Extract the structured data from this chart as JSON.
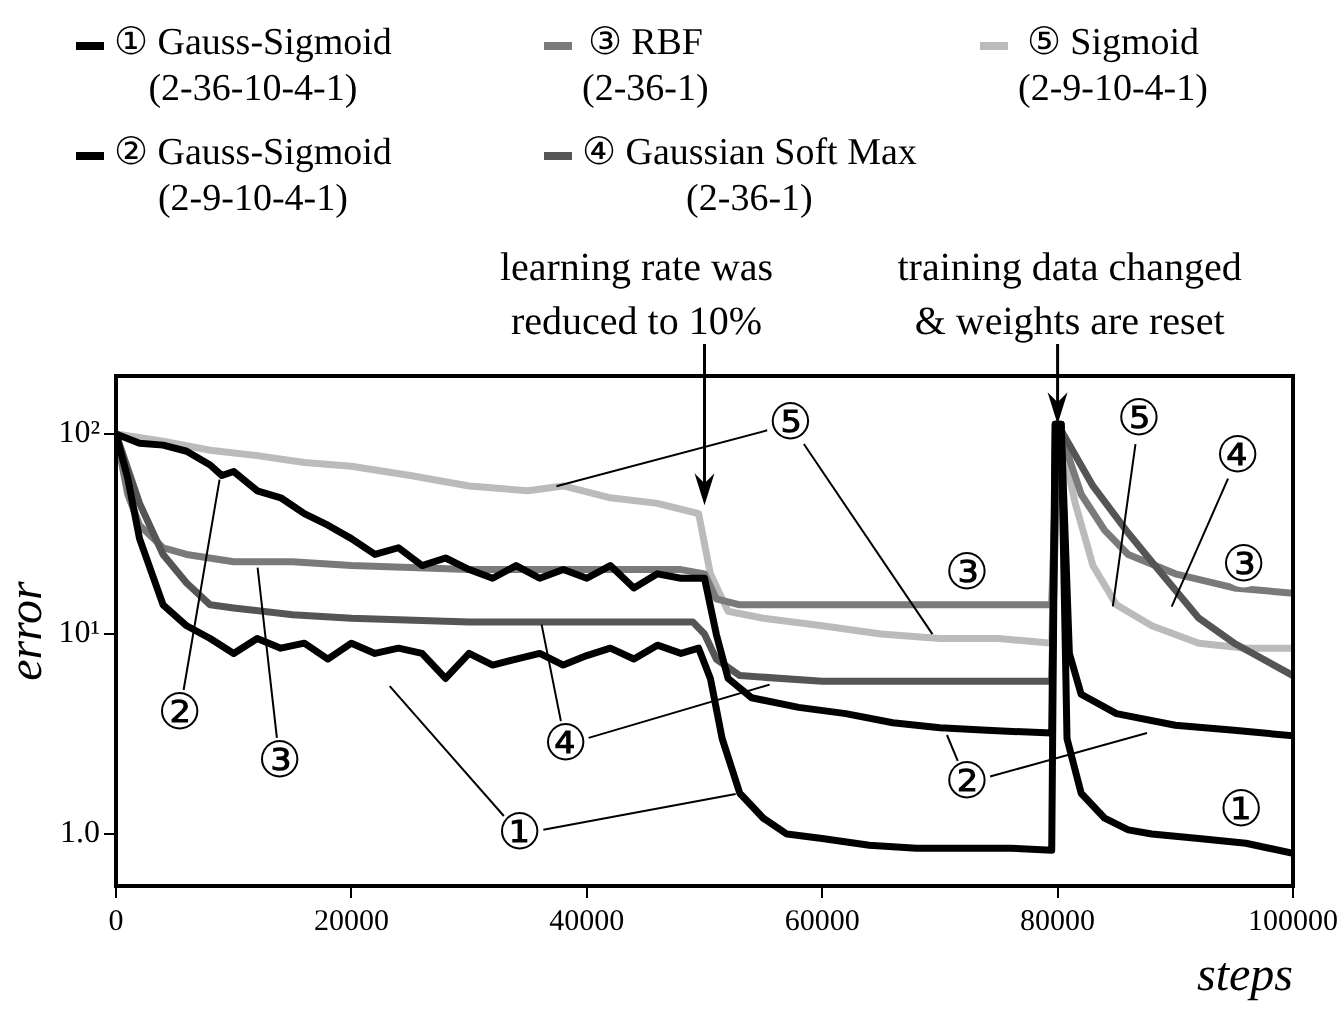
{
  "chart_data": {
    "type": "line",
    "xlabel": "steps",
    "ylabel": "error",
    "log": "y",
    "legend": "top",
    "xlim": [
      0,
      100000
    ],
    "xticks": [
      0,
      20000,
      40000,
      60000,
      80000,
      100000
    ],
    "ylim": [
      0.55,
      195
    ],
    "yticks": [
      {
        "value": 1,
        "label": "1.0"
      },
      {
        "value": 10,
        "label": "10¹"
      },
      {
        "value": 100,
        "label": "10²"
      }
    ],
    "series": [
      {
        "name": "① Gauss-Sigmoid\n(2-36-10-4-1)",
        "color": "#000000",
        "x": [
          0,
          1000,
          2000,
          4000,
          6000,
          8000,
          10000,
          12000,
          14000,
          16000,
          18000,
          20000,
          22000,
          24000,
          26000,
          28000,
          30000,
          32000,
          34000,
          36000,
          38000,
          40000,
          42000,
          44000,
          46000,
          48000,
          49500,
          50500,
          51500,
          53000,
          55000,
          57000,
          60000,
          64000,
          68000,
          72000,
          76000,
          79500,
          79800,
          80300,
          80800,
          82000,
          84000,
          86000,
          88000,
          92000,
          96000,
          100000
        ],
        "values": [
          100,
          60,
          30,
          14,
          11,
          9.5,
          8,
          9.5,
          8.5,
          9,
          7.5,
          9,
          8,
          8.5,
          8,
          6,
          8,
          7,
          7.5,
          8,
          7,
          7.8,
          8.5,
          7.5,
          8.8,
          8,
          8.5,
          6,
          3,
          1.6,
          1.2,
          1,
          0.95,
          0.88,
          0.85,
          0.85,
          0.85,
          0.83,
          112,
          112,
          3,
          1.6,
          1.2,
          1.05,
          1,
          0.95,
          0.9,
          0.8
        ]
      },
      {
        "name": "② Gauss-Sigmoid\n(2-9-10-4-1)",
        "color": "#000000",
        "x": [
          0,
          2000,
          4000,
          6000,
          8000,
          9000,
          10000,
          12000,
          14000,
          16000,
          18000,
          20000,
          22000,
          24000,
          26000,
          28000,
          30000,
          32000,
          34000,
          36000,
          38000,
          40000,
          42000,
          44000,
          46000,
          48000,
          50000,
          51000,
          52000,
          54000,
          58000,
          62000,
          66000,
          70000,
          74000,
          79500,
          79800,
          80300,
          81000,
          82000,
          85000,
          90000,
          95000,
          100000
        ],
        "values": [
          100,
          90,
          88,
          82,
          70,
          62,
          65,
          52,
          48,
          40,
          35,
          30,
          25,
          27,
          22,
          24,
          21,
          19,
          22,
          19,
          21,
          19,
          22,
          17,
          20,
          19,
          19,
          10,
          6,
          4.8,
          4.3,
          4,
          3.6,
          3.4,
          3.3,
          3.2,
          112,
          112,
          8,
          5,
          4,
          3.5,
          3.3,
          3.1
        ]
      },
      {
        "name": "③ RBF\n(2-36-1)",
        "color": "#7a7a7a",
        "x": [
          0,
          1000,
          2000,
          4000,
          6000,
          10000,
          15000,
          20000,
          30000,
          40000,
          48000,
          50000,
          51000,
          53000,
          60000,
          70000,
          79500,
          80000,
          82000,
          84000,
          86000,
          90000,
          95000,
          100000
        ],
        "values": [
          100,
          50,
          35,
          27,
          25,
          23,
          23,
          22,
          21,
          21,
          21,
          20,
          15,
          14,
          14,
          14,
          14,
          112,
          50,
          33,
          25,
          20,
          17,
          16
        ]
      },
      {
        "name": "④ Gaussian Soft Max\n(2-36-1)",
        "color": "#555555",
        "x": [
          0,
          2000,
          4000,
          6000,
          8000,
          10000,
          15000,
          20000,
          30000,
          40000,
          49000,
          50000,
          51000,
          53000,
          60000,
          70000,
          79500,
          80000,
          83000,
          86000,
          88000,
          92000,
          95000,
          100000
        ],
        "values": [
          100,
          45,
          25,
          18,
          14,
          13.5,
          12.5,
          12,
          11.5,
          11.5,
          11.5,
          10,
          7.5,
          6.2,
          5.8,
          5.8,
          5.8,
          112,
          55,
          32,
          23,
          12,
          9,
          6.2
        ]
      },
      {
        "name": "⑤ Sigmoid\n(2-9-10-4-1)",
        "color": "#bbbbbb",
        "x": [
          0,
          4000,
          8000,
          12000,
          16000,
          20000,
          25000,
          30000,
          35000,
          38000,
          42000,
          46000,
          49500,
          50500,
          52000,
          55000,
          60000,
          65000,
          70000,
          75000,
          79500,
          80000,
          81500,
          83000,
          85000,
          88000,
          92000,
          96000,
          100000
        ],
        "values": [
          100,
          92,
          83,
          78,
          72,
          69,
          62,
          55,
          52,
          55,
          48,
          45,
          40,
          20,
          13,
          12,
          11,
          10,
          9.5,
          9.5,
          9,
          112,
          45,
          22,
          14,
          11,
          9,
          8.5,
          8.5
        ]
      }
    ],
    "annotations": [
      {
        "text": "learning rate was\nreduced to 10%",
        "x": 50000,
        "y": 44
      },
      {
        "text": "training data changed\n& weights are reset",
        "x": 80000,
        "y": 112
      },
      {
        "text": "②",
        "x": 5400,
        "y": 4
      },
      {
        "text": "③",
        "x": 13900,
        "y": 2.3
      },
      {
        "text": "④",
        "x": 38200,
        "y": 2.8
      },
      {
        "text": "①",
        "x": 34300,
        "y": 1
      },
      {
        "text": "⑤",
        "x": 57300,
        "y": 112
      },
      {
        "text": "③",
        "x": 72300,
        "y": 20
      },
      {
        "text": "⑤",
        "x": 86900,
        "y": 117
      },
      {
        "text": "④",
        "x": 95300,
        "y": 77
      },
      {
        "text": "③",
        "x": 95800,
        "y": 22
      },
      {
        "text": "②",
        "x": 72300,
        "y": 1.8
      },
      {
        "text": "①",
        "x": 95600,
        "y": 1.3
      }
    ]
  }
}
